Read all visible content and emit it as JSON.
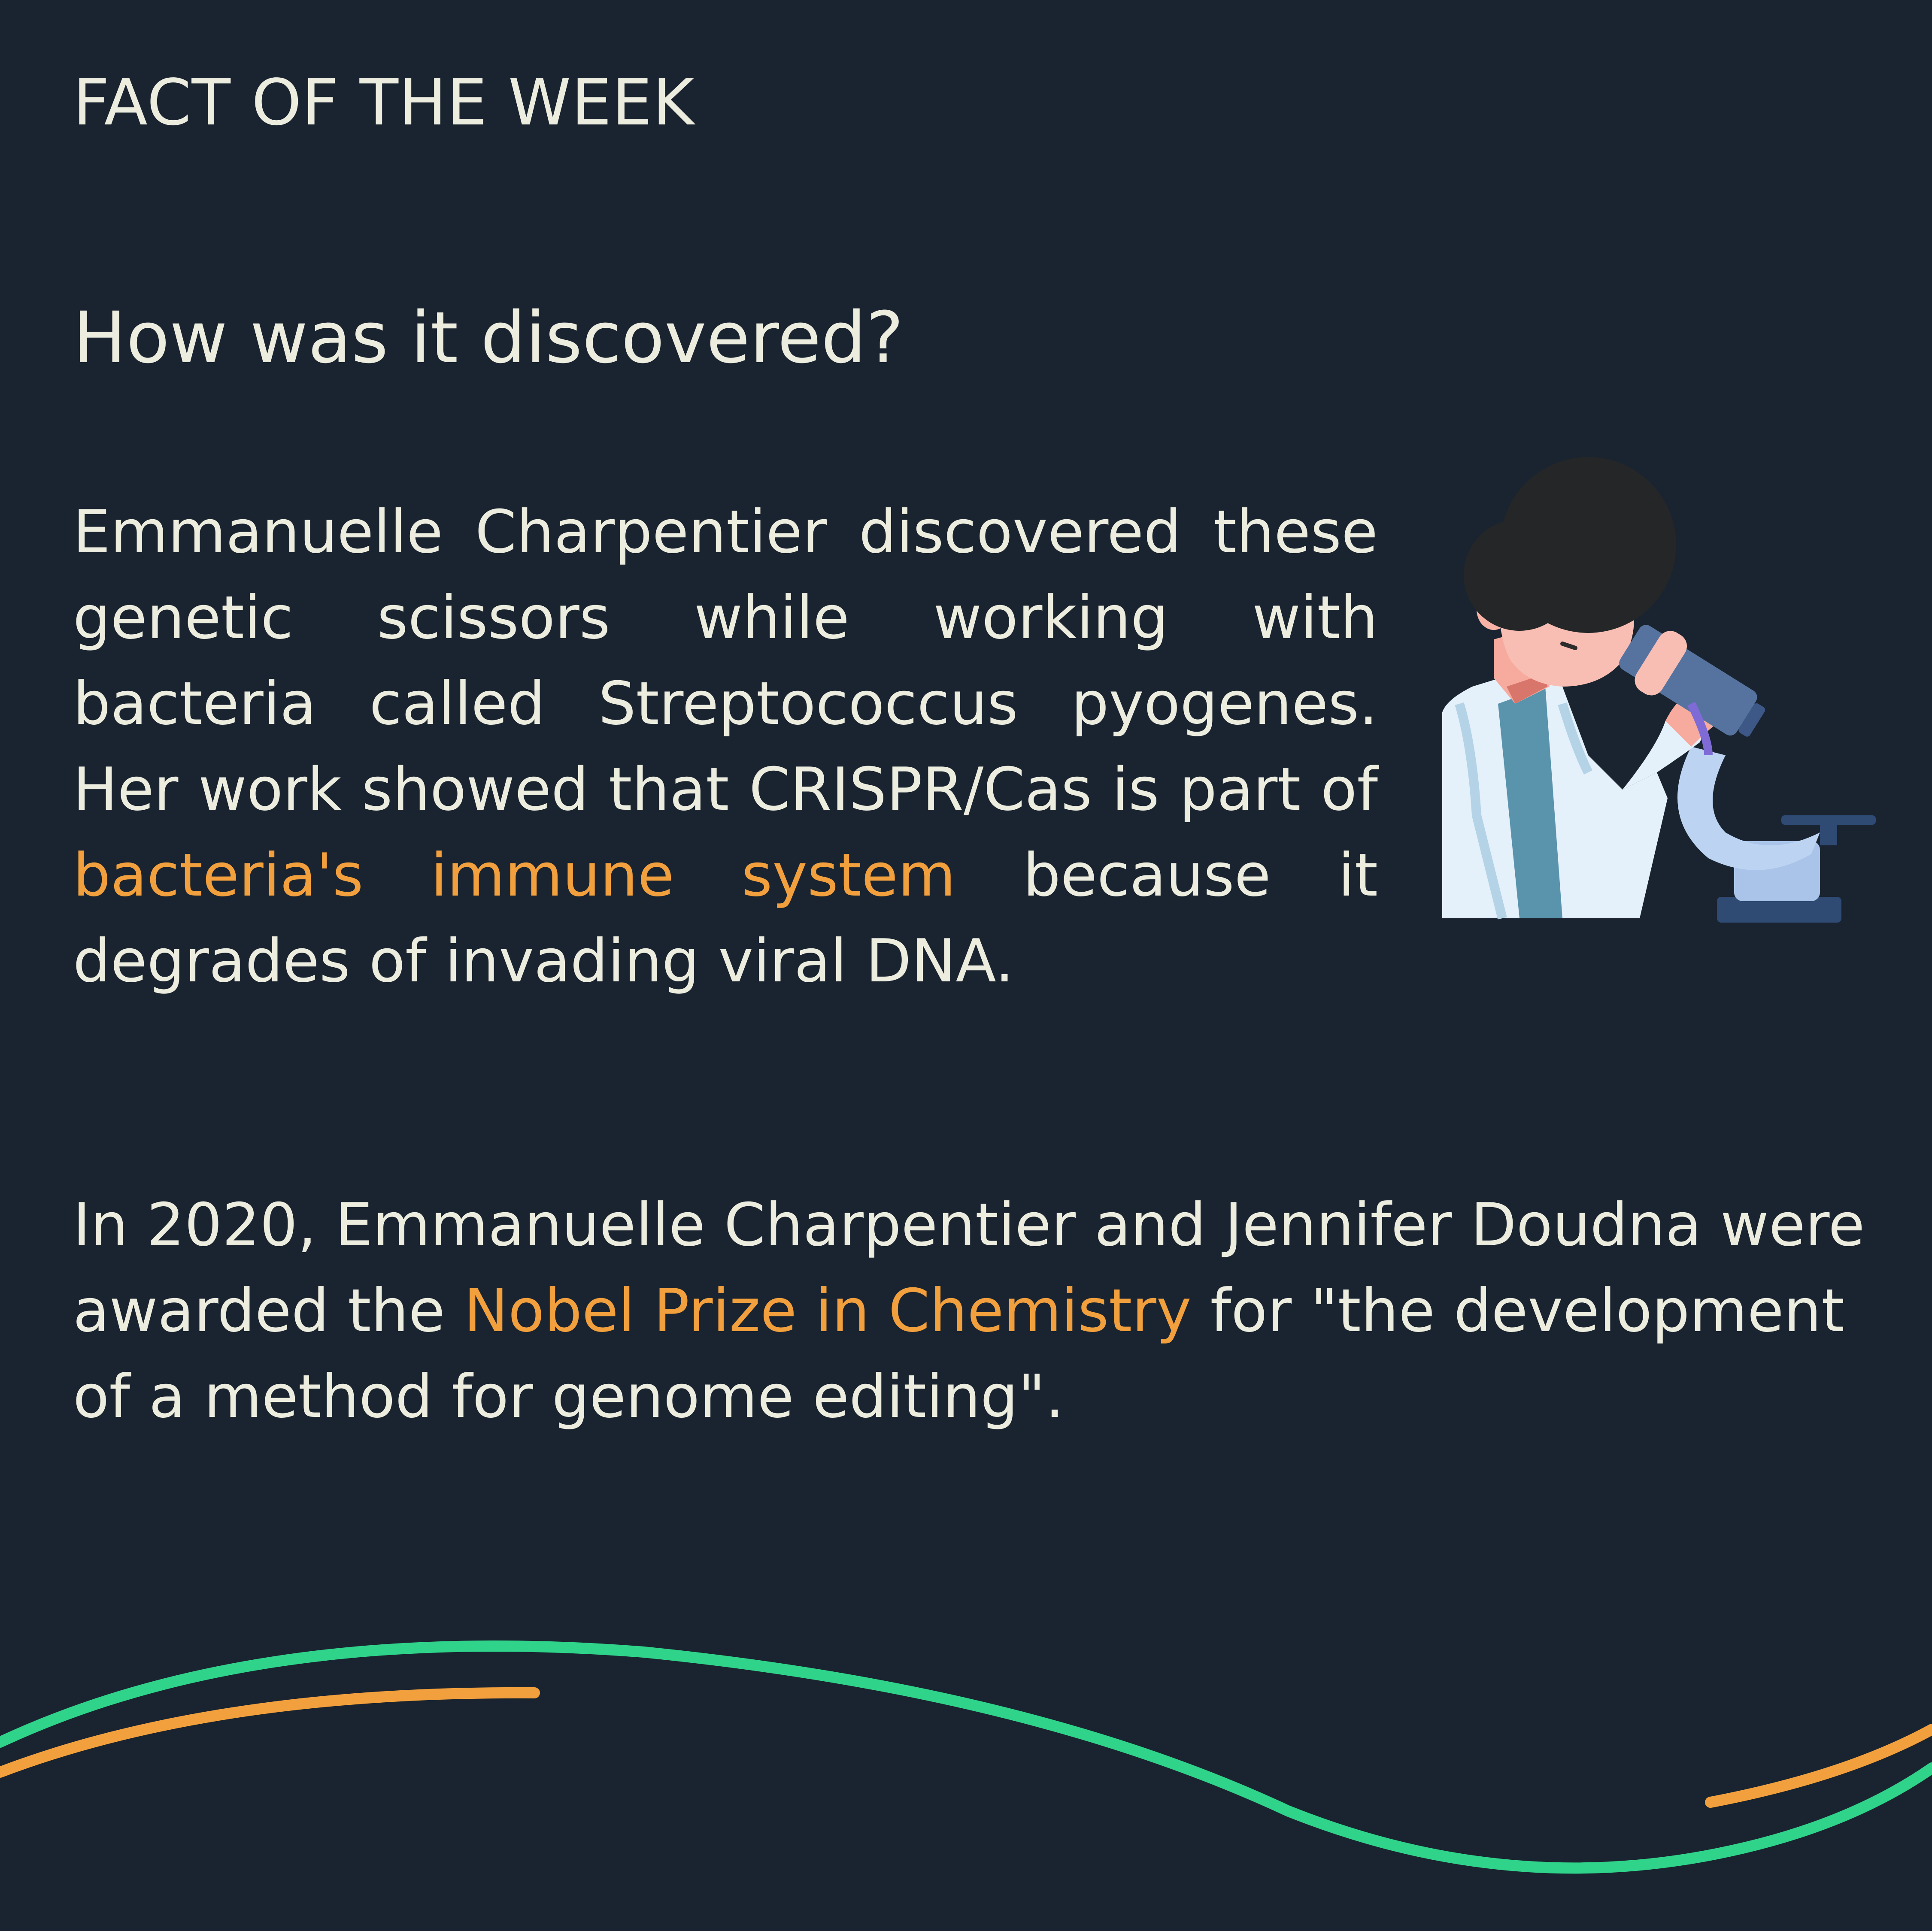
{
  "kicker": "FACT OF THE WEEK",
  "heading": "How was it discovered?",
  "paragraph1": {
    "before_highlight": "Emmanuelle Charpentier discovered these genetic scissors while working with bacteria called Streptococcus pyogenes. Her work showed that CRISPR/Cas is part of ",
    "highlight": "bacteria's immune system",
    "after_highlight": " because it degrades of invading viral DNA."
  },
  "paragraph2": {
    "before_highlight": "In 2020, Emmanuelle Charpentier and Jennifer Doudna were awarded the ",
    "highlight": "Nobel Prize in Chemistry",
    "after_highlight": " for \"the development of a method for genome editing\"."
  },
  "illustration": {
    "name": "scientist-with-microscope"
  },
  "colors": {
    "background": "#1a2430",
    "text": "#ededdf",
    "highlight": "#f2a03d",
    "wave_green": "#2fd38a",
    "wave_orange": "#f2a03d"
  }
}
